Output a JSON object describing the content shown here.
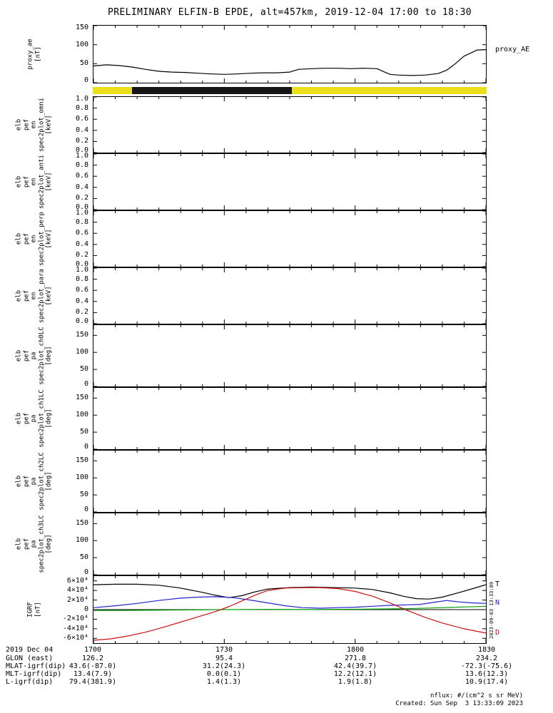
{
  "title": "PRELIMINARY ELFIN-B EPDE, alt=457km, 2019-12-04 17:00 to 18:30",
  "side_note": "2023-09-03 13:33:09",
  "footer": {
    "nflux_units": "nflux: #/(cm^2 s sr MeV)",
    "created": "Created: Sun Sep  3 13:33:09 2023"
  },
  "time_axis": {
    "date_label": "2019 Dec 04",
    "tick_labels": [
      "1700",
      "1730",
      "1800",
      "1830"
    ],
    "tick_minutes": [
      0,
      30,
      60,
      90
    ],
    "minutes_span": 90
  },
  "ephemeris_rows": [
    {
      "label": "GLON (east)",
      "values": [
        "126.2",
        "95.4",
        "271.8",
        "234.2"
      ]
    },
    {
      "label": "MLAT-igrf(dip)",
      "values": [
        "43.6(-87.0)",
        "31.2(24.3)",
        "42.4(39.7)",
        "-72.3(-75.6)"
      ]
    },
    {
      "label": "MLT-igrf(dip)",
      "values": [
        "13.4(7.9)",
        "0.0(0.1)",
        "12.2(12.1)",
        "13.6(12.3)"
      ]
    },
    {
      "label": "L-igrf(dip)",
      "values": [
        "79.4(381.9)",
        "1.4(1.3)",
        "1.9(1.8)",
        "10.9(17.4)"
      ]
    }
  ],
  "availability_bar": {
    "base_color": "#e9df1b",
    "segments": [
      {
        "start_min": 9,
        "end_min": 45.5,
        "color": "#161616"
      }
    ]
  },
  "chart_data": [
    {
      "id": "proxy_ae",
      "type": "line",
      "label_lines": [
        "proxy_ae",
        "[nT]"
      ],
      "ylim": [
        0,
        150
      ],
      "yticks": [
        {
          "v": 150,
          "label": "150"
        },
        {
          "v": 100,
          "label": "100"
        },
        {
          "v": 50,
          "label": "50"
        },
        {
          "v": 0,
          "label": "0"
        }
      ],
      "series": [
        {
          "name": "proxy_AE",
          "color": "#000000",
          "labeled": true,
          "x": [
            0,
            3,
            6,
            9,
            12,
            15,
            18,
            21,
            24,
            27,
            30,
            33,
            36,
            39,
            42,
            45,
            47,
            50,
            53,
            56,
            59,
            62,
            65,
            68,
            70,
            73,
            76,
            79,
            81,
            83,
            85,
            88,
            90
          ],
          "y": [
            44,
            47,
            45,
            41,
            35,
            30,
            28,
            27,
            25,
            23,
            22,
            23,
            25,
            26,
            26,
            28,
            35,
            37,
            38,
            38,
            37,
            38,
            37,
            22,
            20,
            19,
            20,
            24,
            33,
            50,
            70,
            86,
            87
          ]
        }
      ]
    },
    {
      "id": "omni",
      "type": "heatmap",
      "label_lines": [
        "elb",
        "pef",
        "en",
        "spec2plot_omni",
        "[keV]"
      ],
      "ylim": [
        0,
        1
      ],
      "yticks": [
        {
          "v": 1.0,
          "label": "1.0"
        },
        {
          "v": 0.8,
          "label": "0.8"
        },
        {
          "v": 0.6,
          "label": "0.6"
        },
        {
          "v": 0.4,
          "label": "0.4"
        },
        {
          "v": 0.2,
          "label": "0.2"
        },
        {
          "v": 0,
          "label": "0.0"
        }
      ],
      "series": []
    },
    {
      "id": "anti",
      "type": "heatmap",
      "label_lines": [
        "elb",
        "pef",
        "en",
        "spec2plot_anti",
        "[keV]"
      ],
      "ylim": [
        0,
        1
      ],
      "yticks": [
        {
          "v": 1.0,
          "label": "1.0"
        },
        {
          "v": 0.8,
          "label": "0.8"
        },
        {
          "v": 0.6,
          "label": "0.6"
        },
        {
          "v": 0.4,
          "label": "0.4"
        },
        {
          "v": 0.2,
          "label": "0.2"
        },
        {
          "v": 0,
          "label": "0.0"
        }
      ],
      "series": []
    },
    {
      "id": "perp",
      "type": "heatmap",
      "label_lines": [
        "elb",
        "pef",
        "en",
        "spec2plot_perp",
        "[keV]"
      ],
      "ylim": [
        0,
        1
      ],
      "yticks": [
        {
          "v": 1.0,
          "label": "1.0"
        },
        {
          "v": 0.8,
          "label": "0.8"
        },
        {
          "v": 0.6,
          "label": "0.6"
        },
        {
          "v": 0.4,
          "label": "0.4"
        },
        {
          "v": 0.2,
          "label": "0.2"
        },
        {
          "v": 0,
          "label": "0.0"
        }
      ],
      "series": []
    },
    {
      "id": "para",
      "type": "heatmap",
      "label_lines": [
        "elb",
        "pef",
        "en",
        "spec2plot_para",
        "[keV]"
      ],
      "ylim": [
        0,
        1
      ],
      "yticks": [
        {
          "v": 1.0,
          "label": "1.0"
        },
        {
          "v": 0.8,
          "label": "0.8"
        },
        {
          "v": 0.6,
          "label": "0.6"
        },
        {
          "v": 0.4,
          "label": "0.4"
        },
        {
          "v": 0.2,
          "label": "0.2"
        },
        {
          "v": 0,
          "label": "0.0"
        }
      ],
      "series": []
    },
    {
      "id": "ch0lc",
      "type": "heatmap",
      "label_lines": [
        "elb",
        "pef",
        "pa",
        "spec2plot_ch0LC",
        "[deg]"
      ],
      "ylim": [
        0,
        180
      ],
      "yticks": [
        {
          "v": 150,
          "label": "150"
        },
        {
          "v": 100,
          "label": "100"
        },
        {
          "v": 50,
          "label": "50"
        },
        {
          "v": 0,
          "label": "0"
        }
      ],
      "series": []
    },
    {
      "id": "ch1lc",
      "type": "heatmap",
      "label_lines": [
        "elb",
        "pef",
        "pa",
        "spec2plot_ch1LC",
        "[deg]"
      ],
      "ylim": [
        0,
        180
      ],
      "yticks": [
        {
          "v": 150,
          "label": "150"
        },
        {
          "v": 100,
          "label": "100"
        },
        {
          "v": 50,
          "label": "50"
        },
        {
          "v": 0,
          "label": "0"
        }
      ],
      "series": []
    },
    {
      "id": "ch2lc",
      "type": "heatmap",
      "label_lines": [
        "elb",
        "pef",
        "pa",
        "spec2plot_ch2LC",
        "[deg]"
      ],
      "ylim": [
        0,
        180
      ],
      "yticks": [
        {
          "v": 150,
          "label": "150"
        },
        {
          "v": 100,
          "label": "100"
        },
        {
          "v": 50,
          "label": "50"
        },
        {
          "v": 0,
          "label": "0"
        }
      ],
      "series": []
    },
    {
      "id": "ch3lc",
      "type": "heatmap",
      "label_lines": [
        "elb",
        "pef",
        "pa",
        "spec2plot_ch3LC",
        "[deg]"
      ],
      "ylim": [
        0,
        180
      ],
      "yticks": [
        {
          "v": 150,
          "label": "150"
        },
        {
          "v": 100,
          "label": "100"
        },
        {
          "v": 50,
          "label": "50"
        },
        {
          "v": 0,
          "label": "0"
        }
      ],
      "series": []
    },
    {
      "id": "igrf",
      "type": "line",
      "label_lines": [
        "IGRF",
        "[nT]"
      ],
      "ylim": [
        -70000,
        70000
      ],
      "zero_line": true,
      "yticks": [
        {
          "v": 60000,
          "label": "6×10⁴"
        },
        {
          "v": 40000,
          "label": "4×10⁴"
        },
        {
          "v": 20000,
          "label": "2×10⁴"
        },
        {
          "v": 0,
          "label": "0"
        },
        {
          "v": -20000,
          "label": "-2×10⁴"
        },
        {
          "v": -40000,
          "label": "-4×10⁴"
        },
        {
          "v": -60000,
          "label": "-6×10⁴"
        }
      ],
      "series": [
        {
          "name": "T",
          "color": "#000000",
          "labeled": true,
          "x": [
            0,
            5,
            10,
            15,
            20,
            25,
            28,
            31,
            34,
            37,
            40,
            45,
            50,
            55,
            60,
            64,
            68,
            71,
            74,
            77,
            80,
            84,
            87,
            90
          ],
          "y": [
            52000,
            53000,
            53000,
            51000,
            45000,
            36000,
            30000,
            25000,
            29000,
            37000,
            43000,
            46000,
            47000,
            46000,
            45000,
            42000,
            35000,
            28000,
            23000,
            22000,
            26000,
            36000,
            44000,
            52000
          ]
        },
        {
          "name": "N",
          "color": "#2222cc",
          "labeled": true,
          "x": [
            0,
            5,
            10,
            15,
            20,
            24,
            28,
            32,
            36,
            40,
            44,
            48,
            52,
            56,
            60,
            64,
            68,
            72,
            75,
            78,
            81,
            84,
            87,
            90
          ],
          "y": [
            4000,
            8000,
            13000,
            19000,
            24000,
            26000,
            27000,
            25000,
            20000,
            14000,
            8000,
            4000,
            3000,
            4000,
            5000,
            7000,
            9000,
            10000,
            11000,
            15000,
            19000,
            16000,
            14000,
            13000
          ]
        },
        {
          "name": "E",
          "color": "#00a000",
          "labeled": false,
          "x": [
            0,
            10,
            20,
            30,
            40,
            50,
            60,
            68,
            74,
            80,
            85,
            90
          ],
          "y": [
            -2000,
            -1500,
            -800,
            0,
            400,
            200,
            800,
            1500,
            2500,
            4000,
            5500,
            7000
          ]
        },
        {
          "name": "D",
          "color": "#cc1111",
          "labeled": true,
          "x": [
            0,
            4,
            8,
            12,
            16,
            20,
            24,
            28,
            31,
            34,
            37,
            40,
            44,
            48,
            52,
            56,
            60,
            64,
            68,
            72,
            76,
            80,
            85,
            90
          ],
          "y": [
            -64000,
            -61000,
            -55000,
            -47000,
            -37000,
            -26000,
            -15000,
            -4000,
            6000,
            18000,
            30000,
            40000,
            45000,
            46000,
            46000,
            44000,
            38000,
            28000,
            14000,
            -2000,
            -16000,
            -28000,
            -40000,
            -49000
          ]
        }
      ]
    }
  ]
}
